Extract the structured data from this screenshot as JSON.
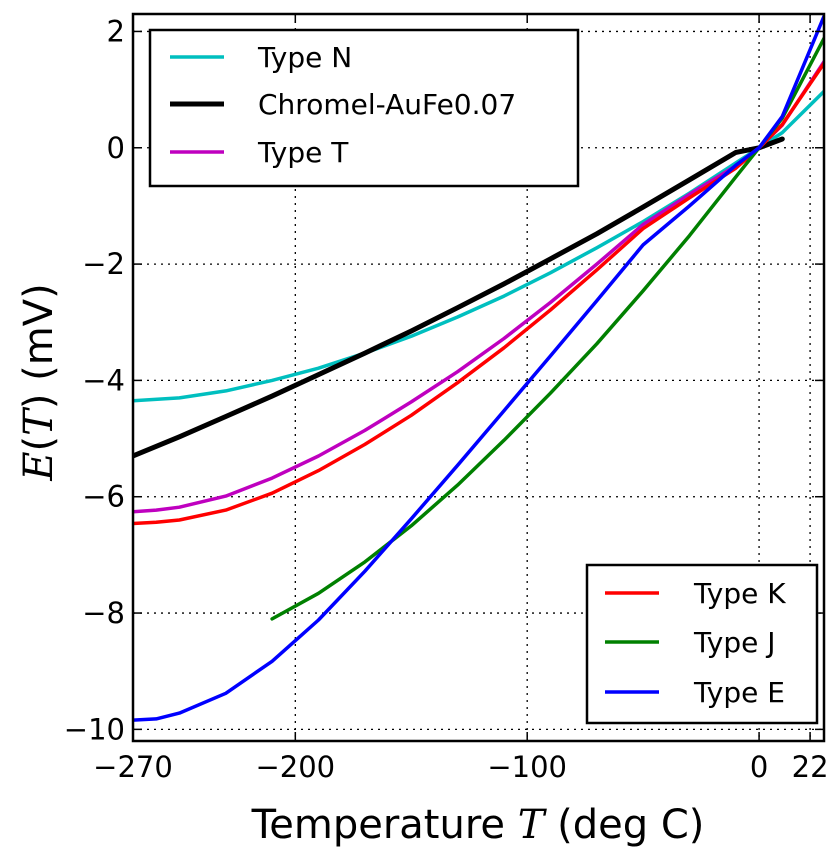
{
  "chart_data": {
    "type": "line",
    "title": "",
    "xlabel": "Temperature T (deg C)",
    "ylabel": "E(T) (mV)",
    "xlim": [
      -270,
      28
    ],
    "ylim": [
      -10.2,
      2.3
    ],
    "xticks": [
      -270,
      -200,
      -100,
      0,
      22
    ],
    "xtick_labels": [
      "−270",
      "−200",
      "−100",
      "0",
      "22"
    ],
    "yticks": [
      2,
      0,
      -2,
      -4,
      -6,
      -8,
      -10
    ],
    "ytick_labels": [
      "2",
      "0",
      "−2",
      "−4",
      "−6",
      "−8",
      "−10"
    ],
    "grid": true,
    "legends": [
      {
        "placement": "top-left",
        "entries": [
          "Type N",
          "Chromel-AuFe0.07",
          "Type T"
        ]
      },
      {
        "placement": "bottom-right",
        "entries": [
          "Type K",
          "Type J",
          "Type E"
        ]
      }
    ],
    "series": [
      {
        "name": "Type N",
        "color": "#00bfbf",
        "width": 3.5,
        "x": [
          -270,
          -250,
          -230,
          -210,
          -190,
          -170,
          -150,
          -130,
          -110,
          -90,
          -70,
          -50,
          -30,
          -10,
          0,
          10,
          28
        ],
        "y": [
          -4.35,
          -4.3,
          -4.18,
          -4.0,
          -3.79,
          -3.53,
          -3.24,
          -2.91,
          -2.55,
          -2.15,
          -1.72,
          -1.27,
          -0.78,
          -0.26,
          0,
          0.26,
          0.97
        ]
      },
      {
        "name": "Chromel-AuFe0.07",
        "color": "#000000",
        "width": 5,
        "x": [
          -270,
          -250,
          -230,
          -210,
          -190,
          -170,
          -150,
          -130,
          -110,
          -90,
          -70,
          -50,
          -30,
          -10,
          0,
          10
        ],
        "y": [
          -5.3,
          -4.97,
          -4.62,
          -4.27,
          -3.9,
          -3.53,
          -3.15,
          -2.75,
          -2.34,
          -1.91,
          -1.48,
          -1.02,
          -0.55,
          -0.08,
          0,
          0.15
        ]
      },
      {
        "name": "Type T",
        "color": "#bf00bf",
        "width": 3.5,
        "x": [
          -270,
          -260,
          -250,
          -230,
          -210,
          -190,
          -170,
          -150,
          -130,
          -110,
          -90,
          -70,
          -50,
          -30,
          -10,
          0,
          10,
          28
        ],
        "y": [
          -6.26,
          -6.23,
          -6.18,
          -5.99,
          -5.68,
          -5.3,
          -4.86,
          -4.37,
          -3.85,
          -3.28,
          -2.66,
          -2.0,
          -1.32,
          -0.8,
          -0.31,
          0,
          0.39,
          1.48
        ]
      },
      {
        "name": "Type K",
        "color": "#ff0000",
        "width": 3.5,
        "x": [
          -270,
          -260,
          -250,
          -230,
          -210,
          -190,
          -170,
          -150,
          -130,
          -110,
          -90,
          -70,
          -50,
          -30,
          -10,
          0,
          10,
          28
        ],
        "y": [
          -6.46,
          -6.44,
          -6.4,
          -6.23,
          -5.94,
          -5.55,
          -5.1,
          -4.6,
          -4.04,
          -3.44,
          -2.79,
          -2.1,
          -1.39,
          -0.86,
          -0.35,
          0,
          0.4,
          1.45
        ]
      },
      {
        "name": "Type J",
        "color": "#008000",
        "width": 3.5,
        "x": [
          -210,
          -190,
          -170,
          -150,
          -130,
          -110,
          -90,
          -70,
          -50,
          -30,
          -10,
          0,
          10,
          28
        ],
        "y": [
          -8.1,
          -7.66,
          -7.12,
          -6.5,
          -5.8,
          -5.03,
          -4.22,
          -3.37,
          -2.46,
          -1.51,
          -0.5,
          0,
          0.51,
          1.88
        ]
      },
      {
        "name": "Type E",
        "color": "#0000ff",
        "width": 3.5,
        "x": [
          -270,
          -260,
          -250,
          -230,
          -210,
          -190,
          -170,
          -150,
          -130,
          -110,
          -90,
          -70,
          -50,
          -30,
          -10,
          0,
          10,
          28
        ],
        "y": [
          -9.84,
          -9.82,
          -9.72,
          -9.38,
          -8.83,
          -8.12,
          -7.28,
          -6.38,
          -5.46,
          -4.52,
          -3.58,
          -2.63,
          -1.67,
          -1.0,
          -0.3,
          0,
          0.54,
          2.26
        ]
      }
    ]
  }
}
